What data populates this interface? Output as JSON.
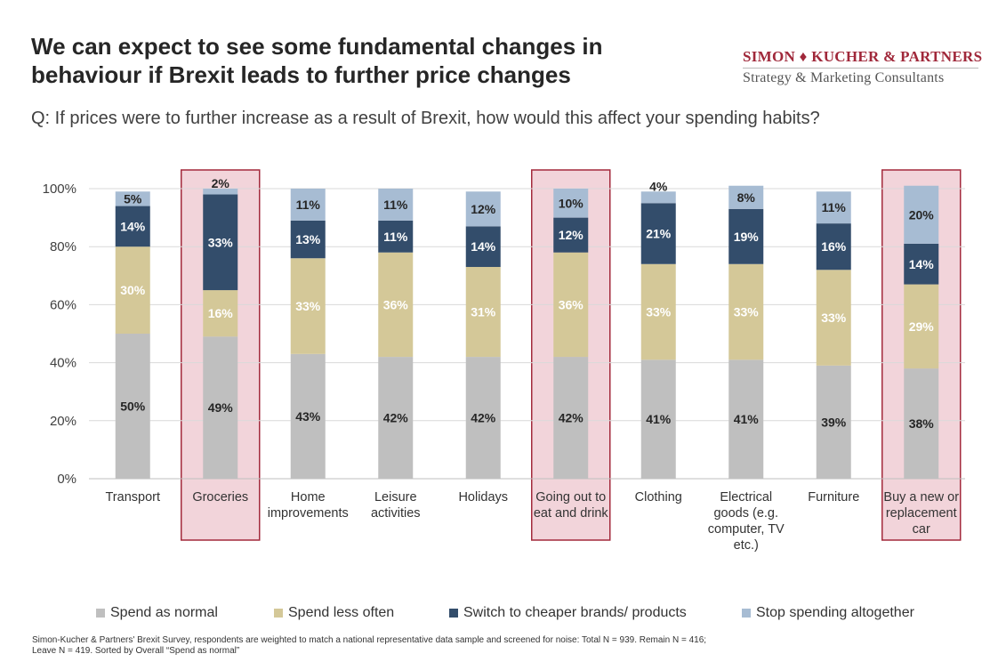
{
  "header": {
    "title_line1": "We can expect to see some fundamental changes in",
    "title_line2": "behaviour if Brexit leads to further price changes",
    "question": "Q: If prices were to further increase as a result of Brexit, how would this affect your spending habits?"
  },
  "logo": {
    "name": "SIMON ♦ KUCHER & PARTNERS",
    "tagline": "Strategy & Marketing Consultants"
  },
  "chart_data": {
    "type": "bar",
    "stacked": true,
    "categories": [
      [
        "Transport"
      ],
      [
        "Groceries"
      ],
      [
        "Home",
        "improvements"
      ],
      [
        "Leisure",
        "activities"
      ],
      [
        "Holidays"
      ],
      [
        "Going out to",
        "eat and drink"
      ],
      [
        "Clothing"
      ],
      [
        "Electrical",
        "goods (e.g.",
        "computer, TV",
        "etc.)"
      ],
      [
        "Furniture"
      ],
      [
        "Buy a new or",
        "replacement",
        "car"
      ]
    ],
    "highlighted": [
      1,
      5,
      9
    ],
    "series": [
      {
        "name": "Spend as normal",
        "color": "#bfbfbf",
        "label_color": "#262626",
        "values": [
          50,
          49,
          43,
          42,
          42,
          42,
          41,
          41,
          39,
          38
        ]
      },
      {
        "name": "Spend less often",
        "color": "#d4c898",
        "label_color": "#ffffff",
        "values": [
          30,
          16,
          33,
          36,
          31,
          36,
          33,
          33,
          33,
          29
        ]
      },
      {
        "name": "Switch to cheaper brands/ products",
        "color": "#334d6b",
        "label_color": "#ffffff",
        "values": [
          14,
          33,
          13,
          11,
          14,
          12,
          21,
          19,
          16,
          14
        ]
      },
      {
        "name": "Stop spending altogether",
        "color": "#a7bcd3",
        "label_color": "#262626",
        "values": [
          5,
          2,
          11,
          11,
          12,
          10,
          4,
          8,
          11,
          20
        ]
      }
    ],
    "ylim": [
      0,
      100
    ],
    "yticks": [
      "0%",
      "20%",
      "40%",
      "60%",
      "80%",
      "100%"
    ],
    "grid": true,
    "legend_position": "bottom"
  },
  "footnote": {
    "line1": "Simon-Kucher & Partners' Brexit Survey, respondents are weighted to match a national representative data sample and screened for noise: Total N = 939. Remain N = 416;",
    "line2": "Leave N = 419. Sorted by Overall “Spend as normal”"
  }
}
